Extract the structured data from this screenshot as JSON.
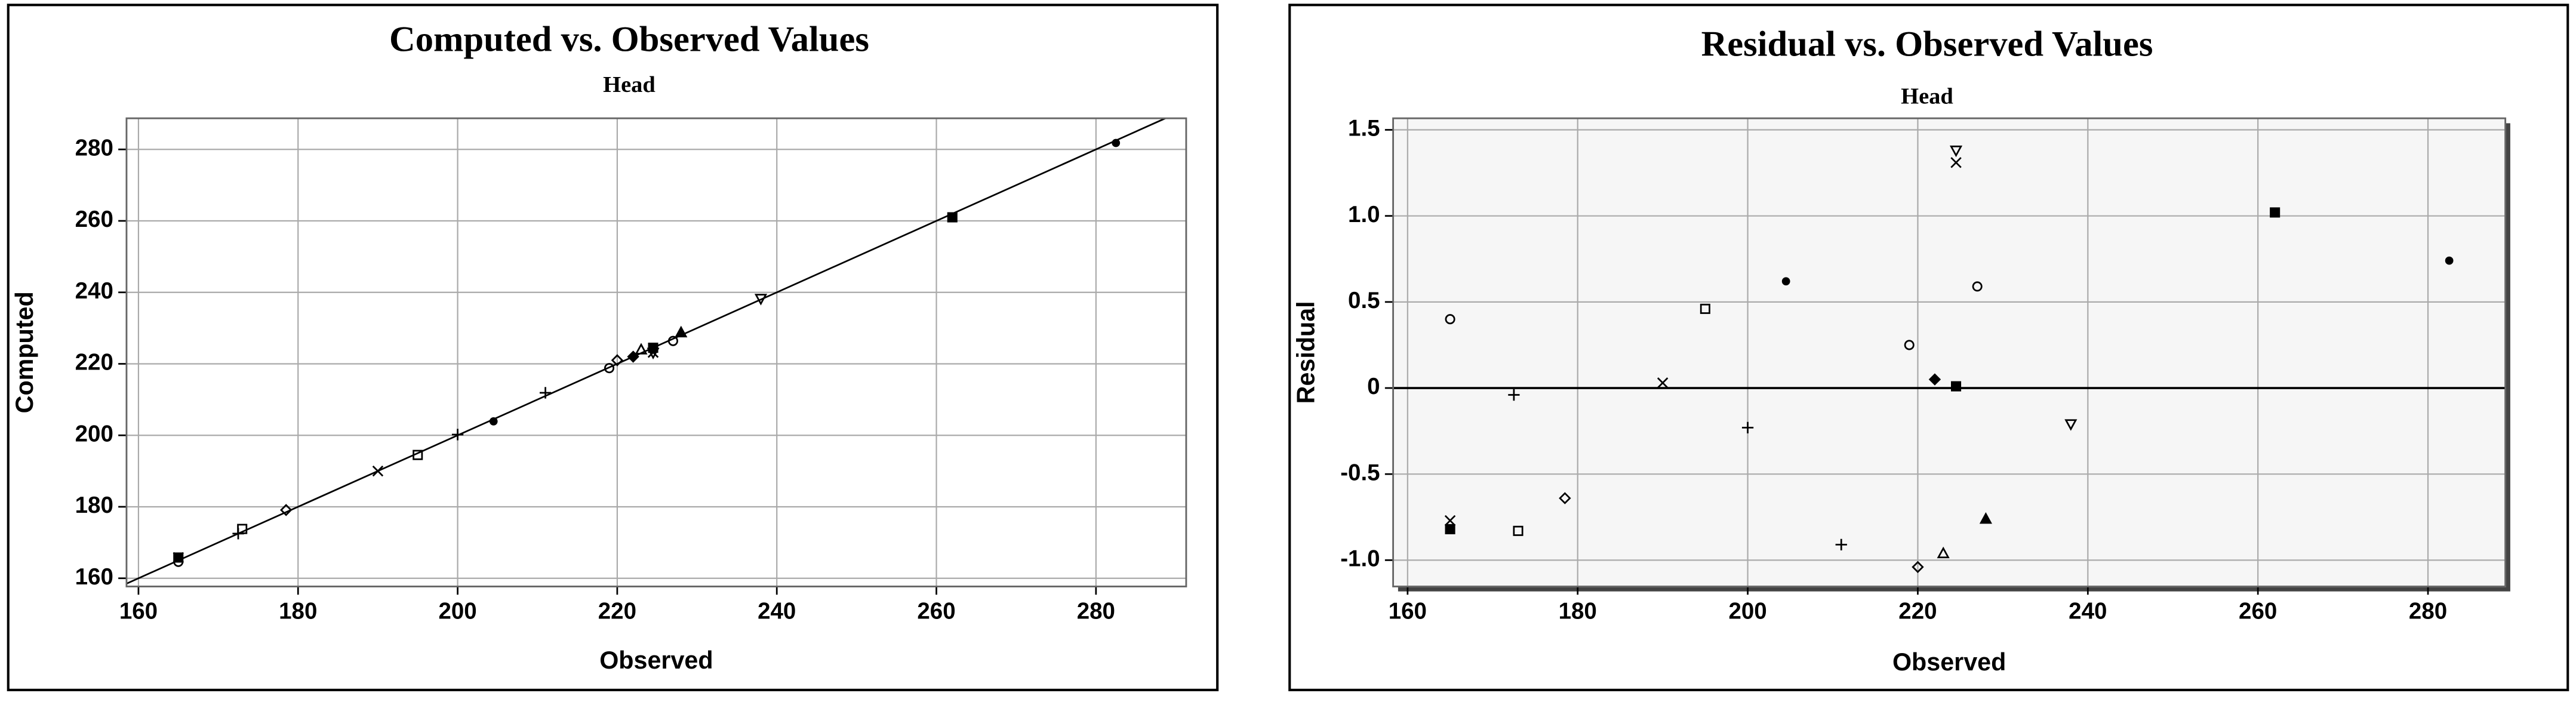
{
  "chart_data": [
    {
      "type": "scatter",
      "title": "Computed vs. Observed Values",
      "subtitle": "Head",
      "x_label": "Observed",
      "y_label": "Computed",
      "x": [
        165,
        165,
        165,
        172.5,
        173,
        178.5,
        190,
        195,
        200,
        204.5,
        211,
        219,
        220,
        222,
        223,
        224.5,
        224.5,
        224.5,
        227,
        228,
        238,
        262,
        282.5
      ],
      "values": [
        164.6,
        165.8,
        165.8,
        172.5,
        173.8,
        179.1,
        190.0,
        194.5,
        200.2,
        203.9,
        211.9,
        218.8,
        221.0,
        222.0,
        224.0,
        223.1,
        223.2,
        224.5,
        226.4,
        228.8,
        238.2,
        261.0,
        281.8
      ],
      "markers": [
        "circle",
        "x",
        "square-filled",
        "plus",
        "square",
        "diamond",
        "x",
        "square",
        "plus",
        "dot",
        "plus",
        "circle",
        "diamond",
        "diamond-filled",
        "triangle",
        "triangle-down",
        "x",
        "square-filled",
        "circle",
        "triangle-filled",
        "triangle-down",
        "square-filled",
        "dot"
      ],
      "color": "#000000",
      "xlim": [
        158.5,
        291.3
      ],
      "xticks": [
        160,
        180,
        200,
        220,
        240,
        260,
        280
      ],
      "ylim": [
        157.7,
        288.7
      ],
      "yticks": [
        160,
        180,
        200,
        220,
        240,
        260,
        280
      ],
      "grid": true,
      "identity_line": true,
      "background": "#ffffff"
    },
    {
      "type": "scatter",
      "title": "Residual vs. Observed Values",
      "subtitle": "Head",
      "x_label": "Observed",
      "y_label": "Residual",
      "x": [
        165,
        165,
        165,
        172.5,
        173,
        178.5,
        190,
        195,
        200,
        204.5,
        211,
        219,
        220,
        222,
        223,
        224.5,
        224.5,
        224.5,
        227,
        228,
        238,
        262,
        282.5
      ],
      "values": [
        0.4,
        -0.77,
        -0.82,
        -0.04,
        -0.83,
        -0.64,
        0.03,
        0.46,
        -0.23,
        0.62,
        -0.91,
        0.25,
        -1.04,
        0.05,
        -0.96,
        1.38,
        1.31,
        0.01,
        0.59,
        -0.76,
        -0.21,
        1.02,
        0.74
      ],
      "markers": [
        "circle",
        "x",
        "square-filled",
        "plus",
        "square",
        "diamond",
        "x",
        "square",
        "plus",
        "dot",
        "plus",
        "circle",
        "diamond",
        "diamond-filled",
        "triangle",
        "triangle-down",
        "x",
        "square-filled",
        "circle",
        "triangle-filled",
        "triangle-down",
        "square-filled",
        "dot"
      ],
      "color": "#000000",
      "xlim": [
        158.3,
        289.1
      ],
      "xticks": [
        160,
        180,
        200,
        220,
        240,
        260,
        280
      ],
      "ylim": [
        -1.153,
        1.567
      ],
      "yticks": [
        1.5,
        {
          "value": 1,
          "label": "1.0"
        },
        0.5,
        0,
        -0.5,
        {
          "value": -1,
          "label": "-1.0"
        }
      ],
      "grid": true,
      "zero_line": true,
      "background": "#f6f6f6"
    }
  ]
}
